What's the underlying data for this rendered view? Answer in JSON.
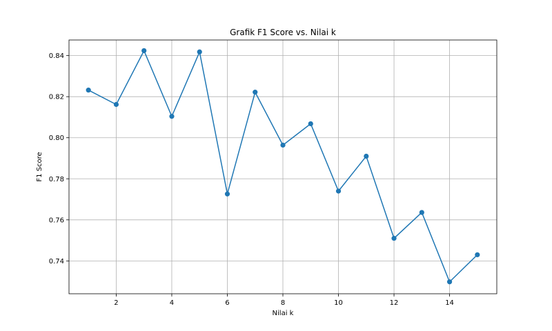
{
  "chart_data": {
    "type": "line",
    "title": "Grafik F1 Score vs. Nilai k",
    "xlabel": "Nilai k",
    "ylabel": "F1 Score",
    "x": [
      1,
      2,
      3,
      4,
      5,
      6,
      7,
      8,
      9,
      10,
      11,
      12,
      13,
      14,
      15
    ],
    "series": [
      {
        "values": [
          0.8232,
          0.8162,
          0.8424,
          0.8104,
          0.8418,
          0.7726,
          0.8222,
          0.7964,
          0.8068,
          0.774,
          0.791,
          0.751,
          0.7636,
          0.7298,
          0.743
        ],
        "color": "#1f77b4"
      }
    ],
    "xlim": [
      0.3,
      15.7
    ],
    "ylim": [
      0.724,
      0.8476
    ],
    "xticks": [
      2,
      4,
      6,
      8,
      10,
      12,
      14
    ],
    "yticks": [
      0.74,
      0.76,
      0.78,
      0.8,
      0.82,
      0.84
    ],
    "xtick_labels": [
      "2",
      "4",
      "6",
      "8",
      "10",
      "12",
      "14"
    ],
    "ytick_labels": [
      "0.74",
      "0.76",
      "0.78",
      "0.80",
      "0.82",
      "0.84"
    ],
    "grid": true,
    "marker": "circle"
  }
}
